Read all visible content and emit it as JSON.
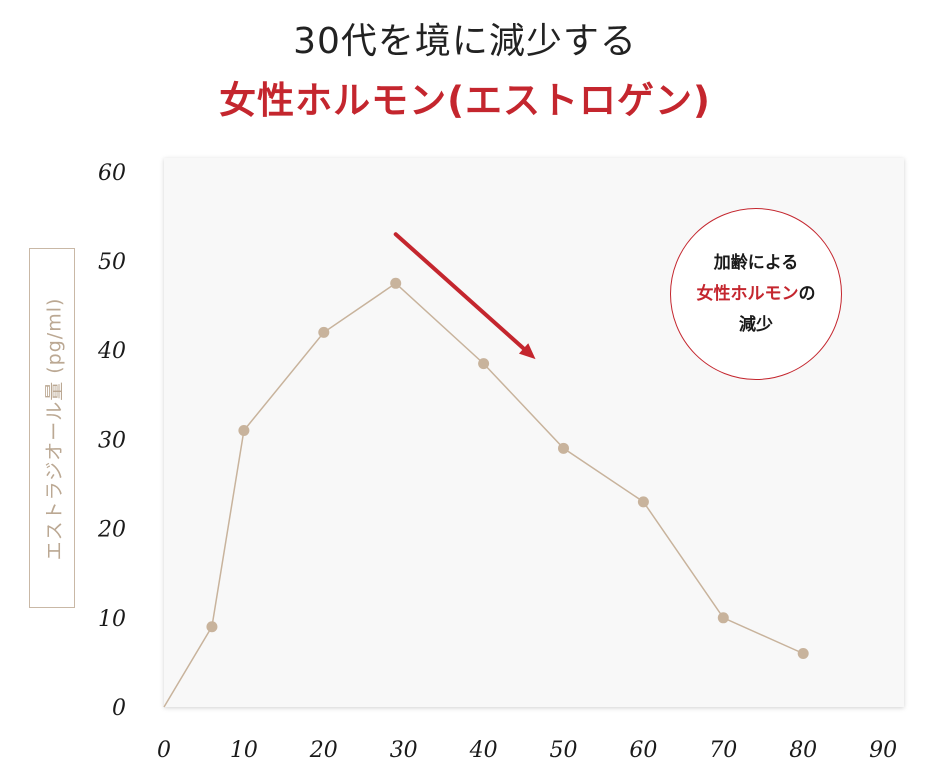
{
  "header": {
    "title_line1": "30代を境に減少する",
    "title_line2": "女性ホルモン(エストロゲン)"
  },
  "callout": {
    "line1": "加齢による",
    "line2_highlight": "女性ホルモン",
    "line2_suffix": "の",
    "line3": "減少"
  },
  "colors": {
    "accent": "#c4262e",
    "series": "#c8b39c",
    "plot_background": "#f8f8f8",
    "title": "#222222"
  },
  "chart_data": {
    "type": "line",
    "title": "",
    "xlabel": "",
    "ylabel": "エストラジオール量 (pg/ml)",
    "xlim": [
      0,
      90
    ],
    "ylim": [
      0,
      60
    ],
    "x_ticks": [
      "0",
      "10",
      "20",
      "30",
      "40",
      "50",
      "60",
      "70",
      "80",
      "90"
    ],
    "y_ticks": [
      "0",
      "10",
      "20",
      "30",
      "40",
      "50",
      "60"
    ],
    "grid": false,
    "series": [
      {
        "x": [
          0,
          6,
          10,
          20,
          29,
          40,
          50,
          60,
          70,
          80
        ],
        "y": [
          0,
          9,
          31,
          42,
          47.5,
          38.5,
          29,
          23,
          10,
          6
        ]
      }
    ],
    "annotations": [
      {
        "type": "arrow",
        "from": [
          29,
          53
        ],
        "to": [
          46.5,
          39
        ]
      }
    ]
  }
}
